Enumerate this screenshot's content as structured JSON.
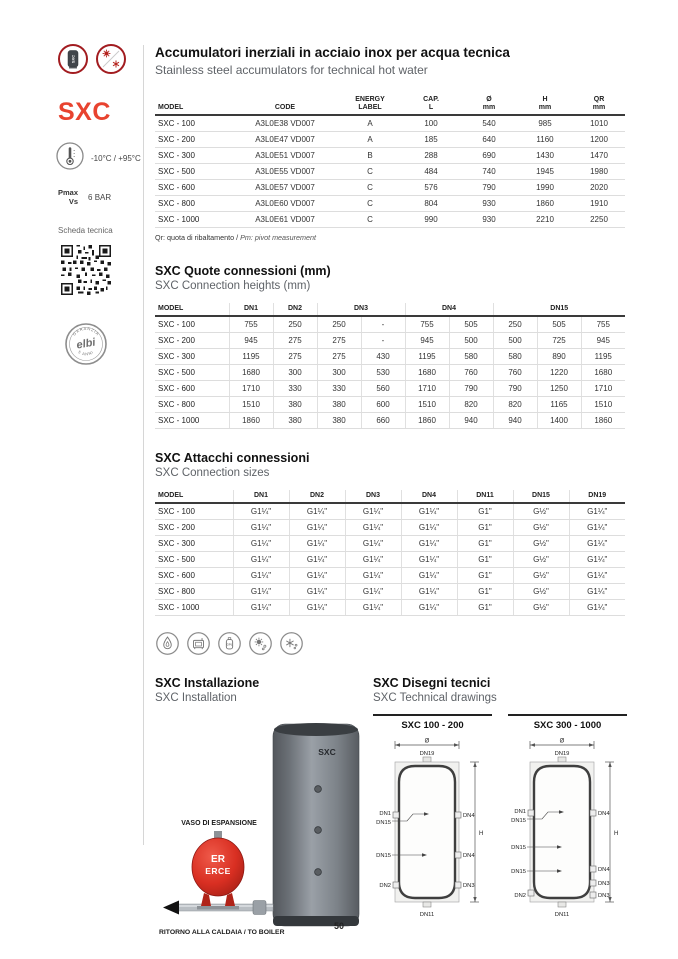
{
  "accent_color": "#e8432f",
  "page": {
    "number": "50"
  },
  "sidebar": {
    "product_name": "SXC",
    "tank_icon_text": "SXC",
    "temperature_range": "-10°C / +95°C",
    "pmax_label": "Pmax",
    "vs_label": "Vs",
    "pressure_value": "6 BAR",
    "datasheet_label": "Scheda tecnica",
    "stamp_top": "GARANZIA",
    "stamp_center": "elbi",
    "stamp_bottom": "5 ANNI",
    "icons": [
      "sxc-tank-icon",
      "sun-snowflake-icon",
      "thermometer-icon",
      "qr-code",
      "warranty-stamp"
    ]
  },
  "header": {
    "title_it": "Accumulatori inerziali in acciaio inox per acqua tecnica",
    "title_en": "Stainless steel accumulators for technical hot water"
  },
  "models_table": {
    "col_model": "MODEL",
    "col_code": "CODE",
    "col_energy_1": "ENERGY",
    "col_energy_2": "LABEL",
    "col_cap_1": "CAP.",
    "col_cap_2": "L",
    "col_dia_1": "Ø",
    "col_dia_2": "mm",
    "col_h_1": "H",
    "col_h_2": "mm",
    "col_qr_1": "QR",
    "col_qr_2": "mm",
    "rows": [
      [
        "SXC - 100",
        "A3L0E38 VD007",
        "A",
        "100",
        "540",
        "985",
        "1010"
      ],
      [
        "SXC - 200",
        "A3L0E47 VD007",
        "A",
        "185",
        "640",
        "1160",
        "1200"
      ],
      [
        "SXC - 300",
        "A3L0E51 VD007",
        "B",
        "288",
        "690",
        "1430",
        "1470"
      ],
      [
        "SXC - 500",
        "A3L0E55 VD007",
        "C",
        "484",
        "740",
        "1945",
        "1980"
      ],
      [
        "SXC - 600",
        "A3L0E57 VD007",
        "C",
        "576",
        "790",
        "1990",
        "2020"
      ],
      [
        "SXC - 800",
        "A3L0E60 VD007",
        "C",
        "804",
        "930",
        "1860",
        "1910"
      ],
      [
        "SXC - 1000",
        "A3L0E61 VD007",
        "C",
        "990",
        "930",
        "2210",
        "2250"
      ]
    ],
    "footnote_regular": "Qr: quota di ribaltamento / ",
    "footnote_italic": "Pm: pivot measurement"
  },
  "heights_section": {
    "title_it": "SXC Quote connessioni (mm)",
    "title_en": "SXC Connection heights (mm)",
    "col_model": "MODEL",
    "col_dn1": "DN1",
    "col_dn2": "DN2",
    "col_dn3": "DN3",
    "col_dn4": "DN4",
    "col_dn15": "DN15",
    "rows": [
      [
        "SXC - 100",
        "755",
        "250",
        "250",
        "-",
        "755",
        "505",
        "250",
        "505",
        "755"
      ],
      [
        "SXC - 200",
        "945",
        "275",
        "275",
        "-",
        "945",
        "500",
        "500",
        "725",
        "945"
      ],
      [
        "SXC - 300",
        "1195",
        "275",
        "275",
        "430",
        "1195",
        "580",
        "580",
        "890",
        "1195"
      ],
      [
        "SXC - 500",
        "1680",
        "300",
        "300",
        "530",
        "1680",
        "760",
        "760",
        "1220",
        "1680"
      ],
      [
        "SXC - 600",
        "1710",
        "330",
        "330",
        "560",
        "1710",
        "790",
        "790",
        "1250",
        "1710"
      ],
      [
        "SXC - 800",
        "1510",
        "380",
        "380",
        "600",
        "1510",
        "820",
        "820",
        "1165",
        "1510"
      ],
      [
        "SXC - 1000",
        "1860",
        "380",
        "380",
        "660",
        "1860",
        "940",
        "940",
        "1400",
        "1860"
      ]
    ]
  },
  "sizes_section": {
    "title_it": "SXC Attacchi connessioni",
    "title_en": "SXC Connection sizes",
    "columns": [
      "MODEL",
      "DN1",
      "DN2",
      "DN3",
      "DN4",
      "DN11",
      "DN15",
      "DN19"
    ],
    "rows": [
      [
        "SXC - 100",
        "G1¼\"",
        "G1¼\"",
        "G1¼\"",
        "G1¼\"",
        "G1\"",
        "G½\"",
        "G1¼\""
      ],
      [
        "SXC - 200",
        "G1¼\"",
        "G1¼\"",
        "G1¼\"",
        "G1¼\"",
        "G1\"",
        "G½\"",
        "G1¼\""
      ],
      [
        "SXC - 300",
        "G1¼\"",
        "G1¼\"",
        "G1¼\"",
        "G1¼\"",
        "G1\"",
        "G½\"",
        "G1¼\""
      ],
      [
        "SXC - 500",
        "G1¼\"",
        "G1¼\"",
        "G1¼\"",
        "G1¼\"",
        "G1\"",
        "G½\"",
        "G1¼\""
      ],
      [
        "SXC - 600",
        "G1¼\"",
        "G1¼\"",
        "G1¼\"",
        "G1¼\"",
        "G1\"",
        "G½\"",
        "G1¼\""
      ],
      [
        "SXC - 800",
        "G1¼\"",
        "G1¼\"",
        "G1¼\"",
        "G1¼\"",
        "G1\"",
        "G½\"",
        "G1¼\""
      ],
      [
        "SXC - 1000",
        "G1¼\"",
        "G1¼\"",
        "G1¼\"",
        "G1¼\"",
        "G1\"",
        "G½\"",
        "G1¼\""
      ]
    ]
  },
  "energy_sources": {
    "icons": [
      "flame-icon",
      "biomass-stove-icon",
      "gpl-icon",
      "solar-sun-icon",
      "snowflake-icon"
    ]
  },
  "installation": {
    "title_it": "SXC Installazione",
    "title_en": "SXC Installation",
    "tank_label": "SXC",
    "expansion_label": "VASO DI ESPANSIONE",
    "vessel_label_1": "ER",
    "vessel_label_2": "ERCE",
    "return_label": "RITORNO ALLA CALDAIA / TO BOILER"
  },
  "drawings": {
    "title_it": "SXC Disegni tecnici",
    "title_en": "SXC Technical drawings",
    "d1": {
      "title": "SXC 100 - 200",
      "diameter_label": "Ø",
      "top_label": "DN19",
      "left_labels": [
        "DN1",
        "DN15",
        "DN15",
        "DN2"
      ],
      "right_labels": [
        "DN4",
        "DN4",
        "DN3"
      ],
      "height_label": "H",
      "bottom_label": "DN11"
    },
    "d2": {
      "title": "SXC 300 - 1000",
      "diameter_label": "Ø",
      "top_label": "DN19",
      "left_labels": [
        "DN1",
        "DN15",
        "DN15",
        "DN15",
        "DN2"
      ],
      "right_labels": [
        "DN4",
        "DN4",
        "DN3",
        "DN3"
      ],
      "height_label": "H",
      "bottom_label": "DN11"
    }
  }
}
